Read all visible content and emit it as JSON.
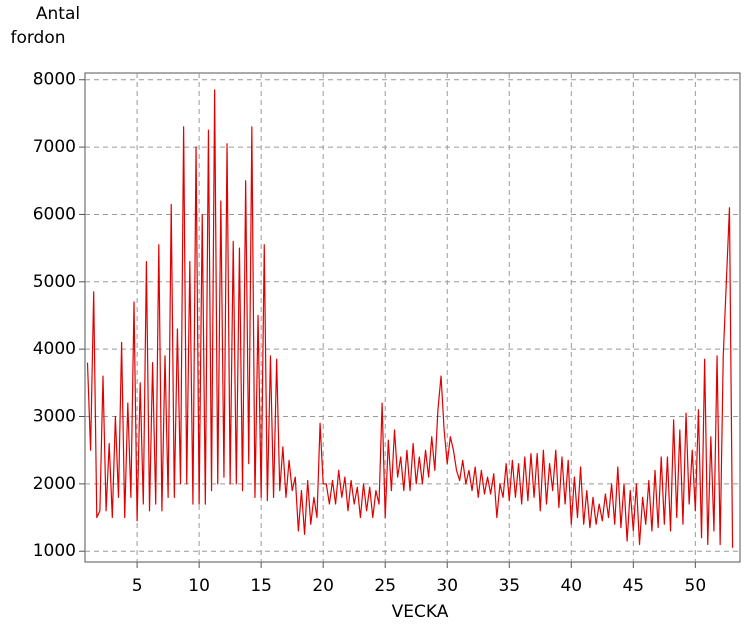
{
  "chart_data": {
    "type": "line",
    "ylabel": [
      "Antal",
      "fordon"
    ],
    "xlabel": "VECKA",
    "color": "#e00000",
    "grid": true,
    "xlim": [
      0.8,
      53.6
    ],
    "ylim": [
      840,
      8100
    ],
    "xticks": [
      5,
      10,
      15,
      20,
      25,
      30,
      35,
      40,
      45,
      50
    ],
    "yticks": [
      1000,
      2000,
      3000,
      4000,
      5000,
      6000,
      7000,
      8000
    ],
    "x": [
      1,
      1.25,
      1.5,
      1.75,
      2,
      2.25,
      2.5,
      2.75,
      3,
      3.25,
      3.5,
      3.75,
      4,
      4.25,
      4.5,
      4.75,
      5,
      5.25,
      5.5,
      5.75,
      6,
      6.25,
      6.5,
      6.75,
      7,
      7.25,
      7.5,
      7.75,
      8,
      8.25,
      8.5,
      8.75,
      9,
      9.25,
      9.5,
      9.75,
      10,
      10.25,
      10.5,
      10.75,
      11,
      11.25,
      11.5,
      11.75,
      12,
      12.25,
      12.5,
      12.75,
      13,
      13.25,
      13.5,
      13.75,
      14,
      14.25,
      14.5,
      14.75,
      15,
      15.25,
      15.5,
      15.75,
      16,
      16.25,
      16.5,
      16.75,
      17,
      17.25,
      17.5,
      17.75,
      18,
      18.25,
      18.5,
      18.75,
      19,
      19.25,
      19.5,
      19.75,
      20,
      20.25,
      20.5,
      20.75,
      21,
      21.25,
      21.5,
      21.75,
      22,
      22.25,
      22.5,
      22.75,
      23,
      23.25,
      23.5,
      23.75,
      24,
      24.25,
      24.5,
      24.75,
      25,
      25.25,
      25.5,
      25.75,
      26,
      26.25,
      26.5,
      26.75,
      27,
      27.25,
      27.5,
      27.75,
      28,
      28.25,
      28.5,
      28.75,
      29,
      29.25,
      29.5,
      29.75,
      30,
      30.25,
      30.5,
      30.75,
      31,
      31.25,
      31.5,
      31.75,
      32,
      32.25,
      32.5,
      32.75,
      33,
      33.25,
      33.5,
      33.75,
      34,
      34.25,
      34.5,
      34.75,
      35,
      35.25,
      35.5,
      35.75,
      36,
      36.25,
      36.5,
      36.75,
      37,
      37.25,
      37.5,
      37.75,
      38,
      38.25,
      38.5,
      38.75,
      39,
      39.25,
      39.5,
      39.75,
      40,
      40.25,
      40.5,
      40.75,
      41,
      41.25,
      41.5,
      41.75,
      42,
      42.25,
      42.5,
      42.75,
      43,
      43.25,
      43.5,
      43.75,
      44,
      44.25,
      44.5,
      44.75,
      45,
      45.25,
      45.5,
      45.75,
      46,
      46.25,
      46.5,
      46.75,
      47,
      47.25,
      47.5,
      47.75,
      48,
      48.25,
      48.5,
      48.75,
      49,
      49.25,
      49.5,
      49.75,
      50,
      50.25,
      50.5,
      50.75,
      51,
      51.25,
      51.5,
      51.75,
      52,
      52.25,
      52.5,
      52.75,
      53
    ],
    "values": [
      3800,
      2500,
      4850,
      1500,
      1600,
      3600,
      1600,
      2600,
      1500,
      3000,
      1800,
      4100,
      1500,
      3200,
      1800,
      4700,
      1450,
      3500,
      1700,
      5300,
      1600,
      3800,
      1700,
      5550,
      1600,
      3900,
      1800,
      6150,
      1800,
      4300,
      2000,
      7300,
      2000,
      5300,
      1700,
      7000,
      1700,
      6000,
      1700,
      7250,
      1900,
      7850,
      2000,
      6200,
      2100,
      7050,
      2000,
      5600,
      2000,
      5500,
      1900,
      6500,
      2300,
      7300,
      1800,
      4500,
      1800,
      5550,
      1750,
      3900,
      1800,
      3850,
      1900,
      2550,
      1800,
      2350,
      1900,
      2100,
      1300,
      1900,
      1250,
      2050,
      1400,
      1800,
      1500,
      2900,
      2000,
      2000,
      1700,
      2050,
      1700,
      2200,
      1800,
      2100,
      1600,
      2050,
      1700,
      1950,
      1500,
      2000,
      1600,
      1950,
      1500,
      1900,
      1700,
      3200,
      1500,
      2650,
      1900,
      2800,
      2100,
      2400,
      1900,
      2500,
      1900,
      2600,
      2000,
      2400,
      2000,
      2500,
      2100,
      2700,
      2200,
      3100,
      3600,
      2800,
      2300,
      2700,
      2500,
      2200,
      2050,
      2350,
      2000,
      2200,
      1900,
      2250,
      1800,
      2200,
      1850,
      2100,
      1850,
      2150,
      1500,
      2000,
      1800,
      2300,
      1750,
      2350,
      1800,
      2300,
      1700,
      2400,
      1750,
      2450,
      1800,
      2450,
      1600,
      2500,
      1700,
      2300,
      1900,
      2500,
      1650,
      2400,
      1700,
      2350,
      1400,
      2100,
      1500,
      2250,
      1400,
      1900,
      1350,
      1800,
      1400,
      1700,
      1450,
      1850,
      1500,
      2000,
      1400,
      2250,
      1350,
      2000,
      1150,
      1900,
      1300,
      2000,
      1100,
      1800,
      1400,
      2050,
      1300,
      2200,
      1350,
      2400,
      1400,
      2400,
      1300,
      2950,
      1500,
      2800,
      1400,
      3050,
      1700,
      2500,
      1600,
      3100,
      1200,
      3850,
      1100,
      2700,
      1300,
      3900,
      1100,
      3900,
      5000,
      6100,
      1050
    ]
  }
}
